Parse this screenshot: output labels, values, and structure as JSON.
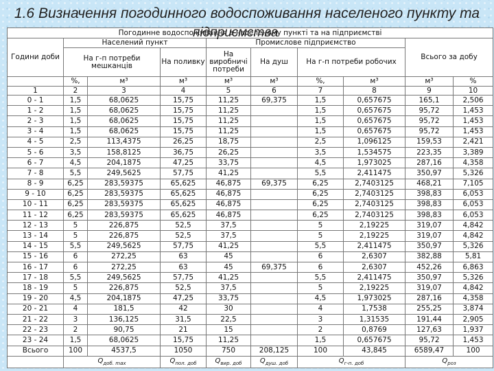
{
  "title_line1": "1.6 Визначення погодинного водоспоживання населеного пункту та",
  "title_line2": "підприємства",
  "headers": {
    "top": "Погодинне водоспоживання в населеному пункті та на підприємстві",
    "hours": "Години доби",
    "settlement": "Населений пункт",
    "industrial": "Промислове підприємство",
    "total_day": "Всього за добу",
    "residents": "На г-п потреби мешканців",
    "watering": "На поливку",
    "production": "На виробничі потреби",
    "shower": "На душ",
    "workers": "На г-п потреби робочих",
    "units": [
      "%,",
      "м³",
      "м³",
      "м³",
      "м³",
      "%,",
      "м³",
      "м³",
      "%"
    ],
    "numbers": [
      "1",
      "2",
      "3",
      "4",
      "5",
      "6",
      "7",
      "8",
      "9",
      "10"
    ]
  },
  "rows": [
    [
      "0 - 1",
      "1,5",
      "68,0625",
      "15,75",
      "11,25",
      "69,375",
      "1,5",
      "0,657675",
      "165,1",
      "2,506"
    ],
    [
      "1 - 2",
      "1,5",
      "68,0625",
      "15,75",
      "11,25",
      "",
      "1,5",
      "0,657675",
      "95,72",
      "1,453"
    ],
    [
      "2 - 3",
      "1,5",
      "68,0625",
      "15,75",
      "11,25",
      "",
      "1,5",
      "0,657675",
      "95,72",
      "1,453"
    ],
    [
      "3 - 4",
      "1,5",
      "68,0625",
      "15,75",
      "11,25",
      "",
      "1,5",
      "0,657675",
      "95,72",
      "1,453"
    ],
    [
      "4 - 5",
      "2,5",
      "113,4375",
      "26,25",
      "18,75",
      "",
      "2,5",
      "1,096125",
      "159,53",
      "2,421"
    ],
    [
      "5 - 6",
      "3,5",
      "158,8125",
      "36,75",
      "26,25",
      "",
      "3,5",
      "1,534575",
      "223,35",
      "3,389"
    ],
    [
      "6 - 7",
      "4,5",
      "204,1875",
      "47,25",
      "33,75",
      "",
      "4,5",
      "1,973025",
      "287,16",
      "4,358"
    ],
    [
      "7 - 8",
      "5,5",
      "249,5625",
      "57,75",
      "41,25",
      "",
      "5,5",
      "2,411475",
      "350,97",
      "5,326"
    ],
    [
      "8 - 9",
      "6,25",
      "283,59375",
      "65,625",
      "46,875",
      "69,375",
      "6,25",
      "2,7403125",
      "468,21",
      "7,105"
    ],
    [
      "9 - 10",
      "6,25",
      "283,59375",
      "65,625",
      "46,875",
      "",
      "6,25",
      "2,7403125",
      "398,83",
      "6,053"
    ],
    [
      "10 - 11",
      "6,25",
      "283,59375",
      "65,625",
      "46,875",
      "",
      "6,25",
      "2,7403125",
      "398,83",
      "6,053"
    ],
    [
      "11 - 12",
      "6,25",
      "283,59375",
      "65,625",
      "46,875",
      "",
      "6,25",
      "2,7403125",
      "398,83",
      "6,053"
    ],
    [
      "12 - 13",
      "5",
      "226,875",
      "52,5",
      "37,5",
      "",
      "5",
      "2,19225",
      "319,07",
      "4,842"
    ],
    [
      "13 - 14",
      "5",
      "226,875",
      "52,5",
      "37,5",
      "",
      "5",
      "2,19225",
      "319,07",
      "4,842"
    ],
    [
      "14 - 15",
      "5,5",
      "249,5625",
      "57,75",
      "41,25",
      "",
      "5,5",
      "2,411475",
      "350,97",
      "5,326"
    ],
    [
      "15 - 16",
      "6",
      "272,25",
      "63",
      "45",
      "",
      "6",
      "2,6307",
      "382,88",
      "5,81"
    ],
    [
      "16 - 17",
      "6",
      "272,25",
      "63",
      "45",
      "69,375",
      "6",
      "2,6307",
      "452,26",
      "6,863"
    ],
    [
      "17 - 18",
      "5,5",
      "249,5625",
      "57,75",
      "41,25",
      "",
      "5,5",
      "2,411475",
      "350,97",
      "5,326"
    ],
    [
      "18 - 19",
      "5",
      "226,875",
      "52,5",
      "37,5",
      "",
      "5",
      "2,19225",
      "319,07",
      "4,842"
    ],
    [
      "19 - 20",
      "4,5",
      "204,1875",
      "47,25",
      "33,75",
      "",
      "4,5",
      "1,973025",
      "287,16",
      "4,358"
    ],
    [
      "20 - 21",
      "4",
      "181,5",
      "42",
      "30",
      "",
      "4",
      "1,7538",
      "255,25",
      "3,874"
    ],
    [
      "21 - 22",
      "3",
      "136,125",
      "31,5",
      "22,5",
      "",
      "3",
      "1,31535",
      "191,44",
      "2,905"
    ],
    [
      "22 - 23",
      "2",
      "90,75",
      "21",
      "15",
      "",
      "2",
      "0,8769",
      "127,63",
      "1,937"
    ],
    [
      "23 - 24",
      "1,5",
      "68,0625",
      "15,75",
      "11,25",
      "",
      "1,5",
      "0,657675",
      "95,72",
      "1,453"
    ],
    [
      "Всього",
      "100",
      "4537,5",
      "1050",
      "750",
      "208,125",
      "100",
      "43,845",
      "6589,47",
      "100"
    ]
  ],
  "symbols": [
    {
      "main": "Q",
      "sub": "доб. max"
    },
    {
      "main": "Q",
      "sub": "пол. доб"
    },
    {
      "main": "Q",
      "sub": "вир. доб"
    },
    {
      "main": "Q",
      "sub": "душ. доб"
    },
    {
      "main": "Q",
      "sub": "г-п. доб"
    },
    {
      "main": "Q",
      "sub": "роз"
    }
  ]
}
